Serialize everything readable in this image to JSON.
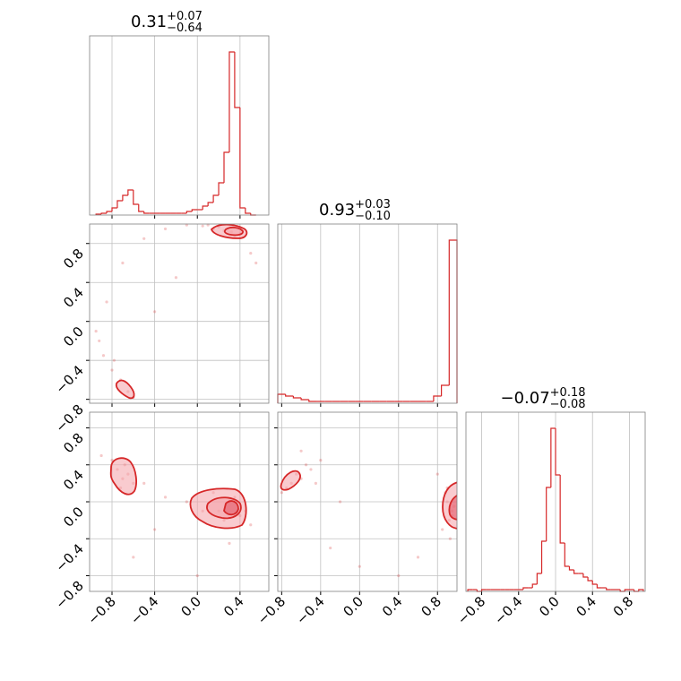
{
  "chart_data": {
    "type": "corner",
    "color": "#d62728",
    "grid": true,
    "parameters": [
      {
        "title": {
          "text": "0.31",
          "upper": "+0.07",
          "lower": "−0.64"
        },
        "lim": [
          -1.01,
          0.67
        ],
        "ticks": [
          {
            "value": -0.8,
            "label": "−0.8"
          },
          {
            "value": -0.4,
            "label": "−0.4"
          },
          {
            "value": 0,
            "label": "0.0"
          },
          0.4
        ],
        "ylim": [
          0,
          1
        ],
        "bins": [
          -0.95,
          -0.9,
          -0.85,
          -0.8,
          -0.75,
          -0.7,
          -0.65,
          -0.6,
          -0.55,
          -0.5,
          -0.45,
          -0.4,
          -0.35,
          -0.3,
          -0.25,
          -0.2,
          -0.15,
          -0.1,
          -0.05,
          0,
          0.05,
          0.1,
          0.15,
          0.2,
          0.25,
          0.3,
          0.35,
          0.4,
          0.45,
          0.5,
          0.55
        ],
        "counts": [
          0.005,
          0.01,
          0.02,
          0.04,
          0.08,
          0.11,
          0.14,
          0.06,
          0.02,
          0.01,
          0.01,
          0.01,
          0.01,
          0.01,
          0.01,
          0.01,
          0.01,
          0.02,
          0.03,
          0.03,
          0.05,
          0.07,
          0.11,
          0.18,
          0.35,
          0.91,
          0.6,
          0.04,
          0.01,
          0
        ]
      },
      {
        "title": {
          "text": "0.93",
          "upper": "+0.03",
          "lower": "−0.10"
        },
        "lim": [
          -0.84,
          1.0
        ],
        "ticks": [
          {
            "value": -0.8,
            "label": "−0.8"
          },
          {
            "value": -0.4,
            "label": "−0.4"
          },
          {
            "value": 0,
            "label": "0.0"
          },
          0.4,
          0.8
        ],
        "ylim": [
          0,
          1
        ],
        "bins": [
          -0.84,
          -0.76,
          -0.68,
          -0.6,
          -0.52,
          -0.44,
          -0.36,
          -0.28,
          -0.2,
          -0.12,
          -0.04,
          0.04,
          0.12,
          0.2,
          0.28,
          0.36,
          0.44,
          0.52,
          0.6,
          0.68,
          0.76,
          0.84,
          0.92,
          1.0
        ],
        "counts": [
          0.05,
          0.04,
          0.03,
          0.02,
          0.01,
          0.01,
          0.01,
          0.01,
          0.01,
          0.01,
          0.01,
          0.01,
          0.01,
          0.01,
          0.01,
          0.01,
          0.01,
          0.01,
          0.01,
          0.01,
          0.04,
          0.1,
          0.91
        ]
      },
      {
        "title": {
          "text": "−0.07",
          "upper": "+0.18",
          "lower": "−0.08"
        },
        "lim": [
          -0.97,
          0.97
        ],
        "ticks": [
          {
            "value": -0.8,
            "label": "−0.8"
          },
          {
            "value": -0.4,
            "label": "−0.4"
          },
          {
            "value": 0,
            "label": "0.0"
          },
          0.4,
          0.8
        ],
        "ylim": [
          0,
          1
        ],
        "bins": [
          -0.95,
          -0.9,
          -0.85,
          -0.8,
          -0.75,
          -0.7,
          -0.65,
          -0.6,
          -0.55,
          -0.5,
          -0.45,
          -0.4,
          -0.35,
          -0.3,
          -0.25,
          -0.2,
          -0.15,
          -0.1,
          -0.05,
          0,
          0.05,
          0.1,
          0.15,
          0.2,
          0.25,
          0.3,
          0.35,
          0.4,
          0.45,
          0.5,
          0.55,
          0.6,
          0.65,
          0.7,
          0.75,
          0.8,
          0.85,
          0.9,
          0.95
        ],
        "counts": [
          0.01,
          0.01,
          0,
          0.01,
          0.01,
          0.01,
          0.01,
          0.01,
          0.01,
          0.01,
          0.01,
          0.01,
          0.02,
          0.02,
          0.04,
          0.1,
          0.28,
          0.58,
          0.91,
          0.65,
          0.27,
          0.14,
          0.12,
          0.1,
          0.1,
          0.08,
          0.06,
          0.04,
          0.02,
          0.02,
          0.01,
          0.01,
          0.01,
          0,
          0.01,
          0.01,
          0,
          0.01
        ]
      }
    ],
    "scatter": [
      {
        "x": [
          0.05,
          0.15,
          0.25,
          0.32,
          0.4,
          0.2,
          -0.1,
          -0.3,
          -0.5,
          -0.7,
          -0.85,
          -0.92,
          -0.88,
          -0.8,
          -0.72,
          -0.65,
          -0.6,
          0.5,
          0.55,
          -0.2,
          -0.4,
          0.1,
          0.35,
          -0.95,
          -0.78
        ],
        "y": [
          0.98,
          0.95,
          0.93,
          0.92,
          0.9,
          0.97,
          0.99,
          0.95,
          0.85,
          0.6,
          0.2,
          -0.2,
          -0.35,
          -0.5,
          -0.6,
          -0.72,
          -0.78,
          0.7,
          0.6,
          0.45,
          0.1,
          0.99,
          0.88,
          -0.1,
          -0.4
        ]
      },
      {
        "x": [
          -0.75,
          -0.7,
          -0.65,
          -0.6,
          -0.72,
          -0.68,
          -0.8,
          0.1,
          0.2,
          0.3,
          0.4,
          0.25,
          0.35,
          0.15,
          0.05,
          -0.1,
          -0.3,
          -0.5,
          0.45,
          0.5,
          -0.9,
          -0.6,
          0.3,
          0.0,
          -0.4
        ],
        "y": [
          0.35,
          0.25,
          0.3,
          0.2,
          0.15,
          0.4,
          0.45,
          -0.05,
          -0.1,
          0.0,
          -0.15,
          -0.2,
          0.05,
          0.1,
          -0.1,
          0.0,
          0.05,
          0.2,
          -0.1,
          -0.25,
          0.5,
          -0.6,
          -0.45,
          -0.8,
          -0.3
        ]
      },
      {
        "x": [
          -0.8,
          -0.7,
          -0.6,
          -0.5,
          -0.4,
          -0.75,
          -0.65,
          -0.55,
          -0.45,
          0.9,
          0.95,
          0.92,
          0.88,
          0.97,
          0.85,
          0.93,
          0.9,
          -0.3,
          0.0,
          0.4,
          0.6,
          -0.2,
          0.95,
          0.8,
          -0.6
        ],
        "y": [
          0.1,
          0.2,
          0.25,
          0.35,
          0.45,
          0.15,
          0.3,
          0.4,
          0.2,
          0.0,
          -0.1,
          -0.2,
          0.1,
          -0.05,
          -0.3,
          -0.4,
          0.15,
          -0.5,
          -0.7,
          -0.8,
          -0.6,
          0.0,
          -0.15,
          0.3,
          0.55
        ]
      }
    ]
  }
}
